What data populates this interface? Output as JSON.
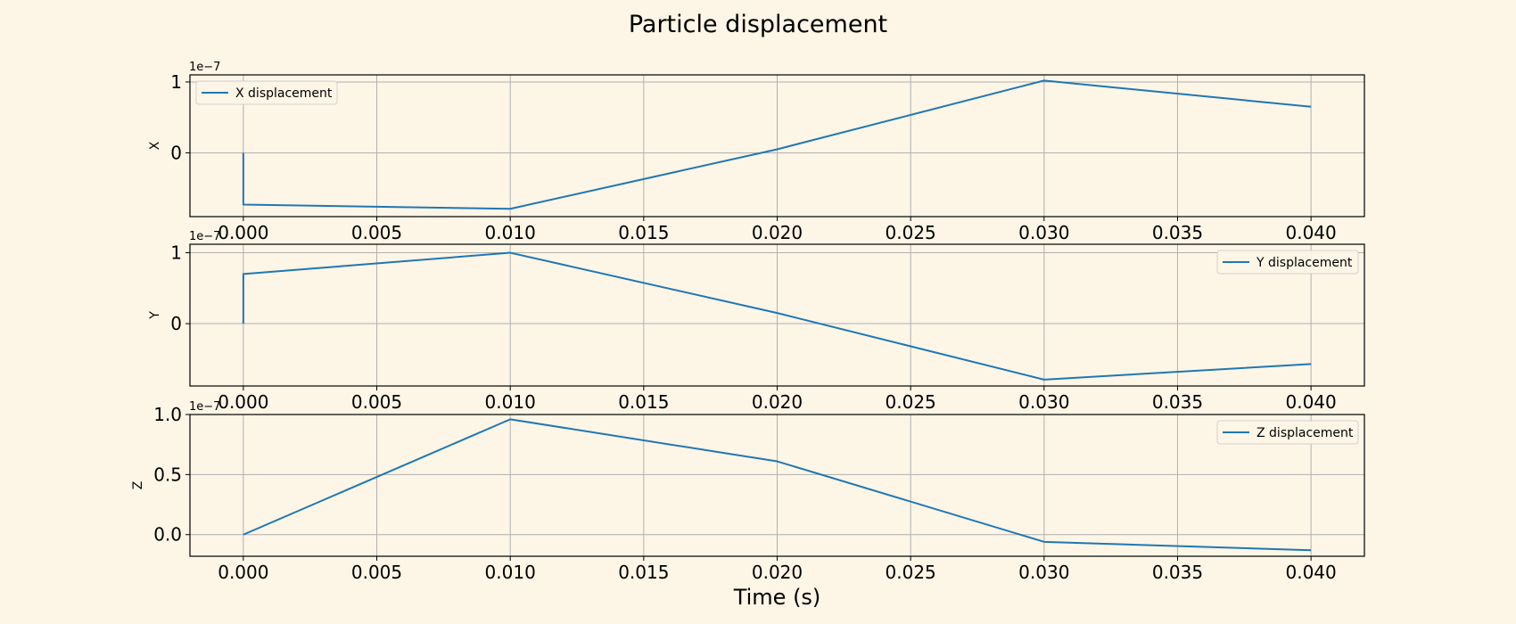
{
  "figure_title": "Particle displacement",
  "colors": {
    "background": "#fdf5e6",
    "line": "#1f77b4",
    "grid": "#b0b0b0"
  },
  "chart_data": [
    {
      "type": "line",
      "title": "",
      "xlabel": "",
      "ylabel": "X",
      "offset_text": "1e−7",
      "x": [
        0.0,
        0.0,
        0.01,
        0.02,
        0.03,
        0.04
      ],
      "xlim": [
        -0.002,
        0.042
      ],
      "xticks": [
        0.0,
        0.005,
        0.01,
        0.015,
        0.02,
        0.025,
        0.03,
        0.035,
        0.04
      ],
      "xtick_labels": [
        "0.000",
        "0.005",
        "0.010",
        "0.015",
        "0.020",
        "0.025",
        "0.030",
        "0.035",
        "0.040"
      ],
      "ylim": [
        -0.9,
        1.1
      ],
      "yticks": [
        0,
        1
      ],
      "ytick_labels": [
        "0",
        "1"
      ],
      "grid": true,
      "legend": "upper-left",
      "series": [
        {
          "name": "X displacement",
          "values": [
            0.0,
            -0.73,
            -0.79,
            0.05,
            1.02,
            0.65
          ]
        }
      ]
    },
    {
      "type": "line",
      "title": "",
      "xlabel": "",
      "ylabel": "Y",
      "offset_text": "1e−7",
      "x": [
        0.0,
        0.0,
        0.01,
        0.02,
        0.03,
        0.04
      ],
      "xlim": [
        -0.002,
        0.042
      ],
      "xticks": [
        0.0,
        0.005,
        0.01,
        0.015,
        0.02,
        0.025,
        0.03,
        0.035,
        0.04
      ],
      "xtick_labels": [
        "0.000",
        "0.005",
        "0.010",
        "0.015",
        "0.020",
        "0.025",
        "0.030",
        "0.035",
        "0.040"
      ],
      "ylim": [
        -0.88,
        1.12
      ],
      "yticks": [
        0,
        1
      ],
      "ytick_labels": [
        "0",
        "1"
      ],
      "grid": true,
      "legend": "upper-right",
      "series": [
        {
          "name": "Y displacement",
          "values": [
            0.0,
            0.7,
            1.0,
            0.15,
            -0.79,
            -0.57
          ]
        }
      ]
    },
    {
      "type": "line",
      "title": "",
      "xlabel": "Time (s)",
      "ylabel": "Z",
      "offset_text": "1e−7",
      "x": [
        0.0,
        0.01,
        0.02,
        0.03,
        0.04
      ],
      "xlim": [
        -0.002,
        0.042
      ],
      "xticks": [
        0.0,
        0.005,
        0.01,
        0.015,
        0.02,
        0.025,
        0.03,
        0.035,
        0.04
      ],
      "xtick_labels": [
        "0.000",
        "0.005",
        "0.010",
        "0.015",
        "0.020",
        "0.025",
        "0.030",
        "0.035",
        "0.040"
      ],
      "ylim": [
        -0.18,
        1.0
      ],
      "yticks": [
        0.0,
        0.5,
        1.0
      ],
      "ytick_labels": [
        "0.0",
        "0.5",
        "1.0"
      ],
      "grid": true,
      "legend": "upper-right",
      "series": [
        {
          "name": "Z displacement",
          "values": [
            0.0,
            0.96,
            0.61,
            -0.06,
            -0.13
          ]
        }
      ]
    }
  ]
}
